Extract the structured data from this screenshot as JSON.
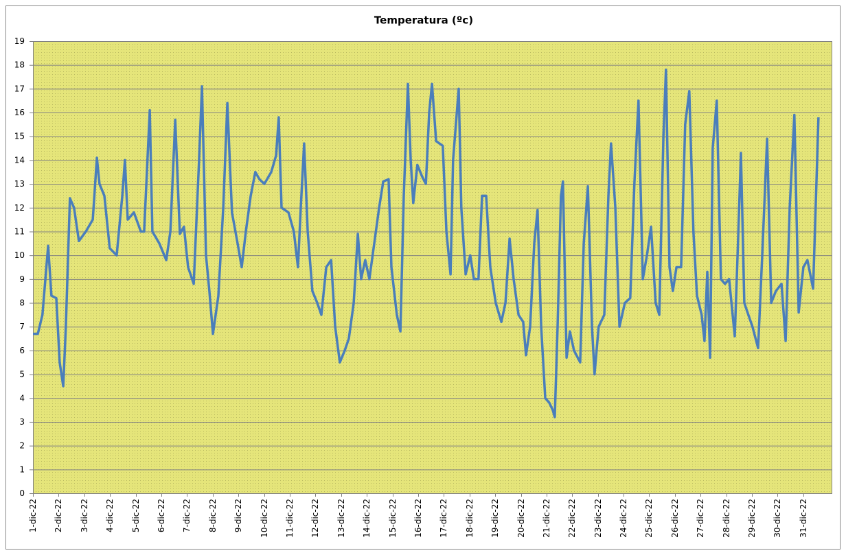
{
  "chart_data": {
    "type": "line",
    "title": "Temperatura (ºc)",
    "x": [
      0,
      0.19,
      0.37,
      0.59,
      0.72,
      0.91,
      1.04,
      1.18,
      1.28,
      1.44,
      1.6,
      1.79,
      2.06,
      2.33,
      2.49,
      2.59,
      2.78,
      2.99,
      3.26,
      3.48,
      3.58,
      3.69,
      3.93,
      4.2,
      4.33,
      4.55,
      4.65,
      4.92,
      5.19,
      5.35,
      5.54,
      5.72,
      5.88,
      6.04,
      6.26,
      6.47,
      6.58,
      6.74,
      6.87,
      7.01,
      7.22,
      7.41,
      7.57,
      7.75,
      7.97,
      8.13,
      8.29,
      8.48,
      8.66,
      8.82,
      9.01,
      9.28,
      9.47,
      9.57,
      9.68,
      9.95,
      10.16,
      10.32,
      10.43,
      10.56,
      10.7,
      10.88,
      11.07,
      11.23,
      11.42,
      11.61,
      11.77,
      11.95,
      12.14,
      12.3,
      12.49,
      12.65,
      12.78,
      12.94,
      13.1,
      13.29,
      13.48,
      13.64,
      13.85,
      13.96,
      14.17,
      14.31,
      14.44,
      14.6,
      14.71,
      14.81,
      14.97,
      15.16,
      15.3,
      15.43,
      15.54,
      15.7,
      15.96,
      16.1,
      16.26,
      16.36,
      16.58,
      16.68,
      16.85,
      17.03,
      17.17,
      17.35,
      17.49,
      17.65,
      17.81,
      18.02,
      18.24,
      18.4,
      18.56,
      18.72,
      18.91,
      19.09,
      19.2,
      19.36,
      19.52,
      19.65,
      19.79,
      19.95,
      20.11,
      20.24,
      20.32,
      20.43,
      20.56,
      20.64,
      20.78,
      20.91,
      21.07,
      21.31,
      21.45,
      21.61,
      21.77,
      21.87,
      22.03,
      22.25,
      22.41,
      22.51,
      22.68,
      22.84,
      23.05,
      23.26,
      23.42,
      23.58,
      23.75,
      23.91,
      24.07,
      24.25,
      24.39,
      24.55,
      24.65,
      24.79,
      24.92,
      25.06,
      25.24,
      25.4,
      25.56,
      25.72,
      25.86,
      26.04,
      26.15,
      26.26,
      26.37,
      26.47,
      26.63,
      26.79,
      26.95,
      27.11,
      27.33,
      27.44,
      27.57,
      27.7,
      27.86,
      28.02,
      28.24,
      28.4,
      28.59,
      28.75,
      28.93,
      29.15,
      29.31,
      29.47,
      29.65,
      29.82,
      30.0,
      30.16,
      30.38,
      30.48,
      30.59
    ],
    "series": [
      {
        "name": "Temperatura",
        "color": "#4a7ebb",
        "values": [
          6.7,
          6.7,
          7.5,
          10.4,
          8.3,
          8.2,
          5.5,
          4.5,
          7,
          12.4,
          12.0,
          10.6,
          11.0,
          11.5,
          14.1,
          13.0,
          12.5,
          10.3,
          10.0,
          12.5,
          14.0,
          11.5,
          11.8,
          11.0,
          11.0,
          16.1,
          11.0,
          10.5,
          9.8,
          11.0,
          15.7,
          10.9,
          11.2,
          9.5,
          8.8,
          14,
          17.1,
          10,
          8.5,
          6.7,
          8.3,
          12.0,
          16.4,
          11.8,
          10.5,
          9.5,
          11,
          12.5,
          13.5,
          13.2,
          13.0,
          13.5,
          14.2,
          15.8,
          12.0,
          11.8,
          11.0,
          9.5,
          12,
          14.7,
          11.0,
          8.5,
          8.0,
          7.5,
          9.5,
          9.8,
          7,
          5.5,
          6.0,
          6.5,
          8,
          10.9,
          9.0,
          9.8,
          9.0,
          10.5,
          12.0,
          13.1,
          13.2,
          9.5,
          7.5,
          6.8,
          12.5,
          17.2,
          14,
          12.2,
          13.8,
          13.3,
          13.0,
          16.0,
          17.2,
          14.8,
          14.6,
          11.0,
          9.2,
          14,
          17.0,
          12.0,
          9.2,
          10.0,
          9.0,
          9.0,
          12.5,
          12.5,
          9.5,
          8.0,
          7.2,
          8.0,
          10.7,
          9.0,
          7.5,
          7.2,
          5.8,
          7.0,
          10.5,
          11.9,
          7.0,
          4.0,
          3.8,
          3.5,
          3.2,
          7,
          12.5,
          13.1,
          5.7,
          6.8,
          6.0,
          5.5,
          10.5,
          12.9,
          7.0,
          5.0,
          7.0,
          7.5,
          12.5,
          14.7,
          12.0,
          7.0,
          8.0,
          8.2,
          13,
          16.5,
          9.0,
          10,
          11.2,
          8.0,
          7.5,
          15.0,
          17.8,
          9.5,
          8.5,
          9.5,
          9.5,
          15.5,
          16.9,
          11,
          8.3,
          7.5,
          6.4,
          9.3,
          5.7,
          14.5,
          16.5,
          9.0,
          8.8,
          9.0,
          6.6,
          10,
          14.3,
          8.0,
          7.5,
          7.0,
          6.1,
          10,
          14.9,
          8.0,
          8.5,
          8.8,
          6.4,
          12,
          15.9,
          7.6,
          9.5,
          9.8,
          8.6,
          12,
          15.8
        ]
      }
    ],
    "xlim": [
      0,
      31.1
    ],
    "xticks": [
      {
        "value": 0,
        "label": "1-dic-22"
      },
      {
        "value": 1,
        "label": "2-dic-22"
      },
      {
        "value": 2,
        "label": "3-dic-22"
      },
      {
        "value": 3,
        "label": "4-dic-22"
      },
      {
        "value": 4,
        "label": "5-dic-22"
      },
      {
        "value": 5,
        "label": "6-dic-22"
      },
      {
        "value": 6,
        "label": "7-dic-22"
      },
      {
        "value": 7,
        "label": "8-dic-22"
      },
      {
        "value": 8,
        "label": "9-dic-22"
      },
      {
        "value": 9,
        "label": "10-dic-22"
      },
      {
        "value": 10,
        "label": "11-dic-22"
      },
      {
        "value": 11,
        "label": "12-dic-22"
      },
      {
        "value": 12,
        "label": "13-dic-22"
      },
      {
        "value": 13,
        "label": "14-dic-22"
      },
      {
        "value": 14,
        "label": "15-dic-22"
      },
      {
        "value": 15,
        "label": "16-dic-22"
      },
      {
        "value": 16,
        "label": "17-dic-22"
      },
      {
        "value": 17,
        "label": "18-dic-22"
      },
      {
        "value": 18,
        "label": "19-dic-22"
      },
      {
        "value": 19,
        "label": "20-dic-22"
      },
      {
        "value": 20,
        "label": "21-dic-22"
      },
      {
        "value": 21,
        "label": "22-dic-22"
      },
      {
        "value": 22,
        "label": "23-dic-22"
      },
      {
        "value": 23,
        "label": "24-dic-22"
      },
      {
        "value": 24,
        "label": "25-dic-22"
      },
      {
        "value": 25,
        "label": "26-dic-22"
      },
      {
        "value": 26,
        "label": "27-dic-22"
      },
      {
        "value": 27,
        "label": "28-dic-22"
      },
      {
        "value": 28,
        "label": "29-dic-22"
      },
      {
        "value": 29,
        "label": "30-dic-22"
      },
      {
        "value": 30,
        "label": "31-dic-22"
      }
    ],
    "ylim": [
      0,
      19
    ],
    "yticks": [
      0,
      1,
      2,
      3,
      4,
      5,
      6,
      7,
      8,
      9,
      10,
      11,
      12,
      13,
      14,
      15,
      16,
      17,
      18,
      19
    ],
    "grid": true,
    "background": "#e5e57a"
  }
}
